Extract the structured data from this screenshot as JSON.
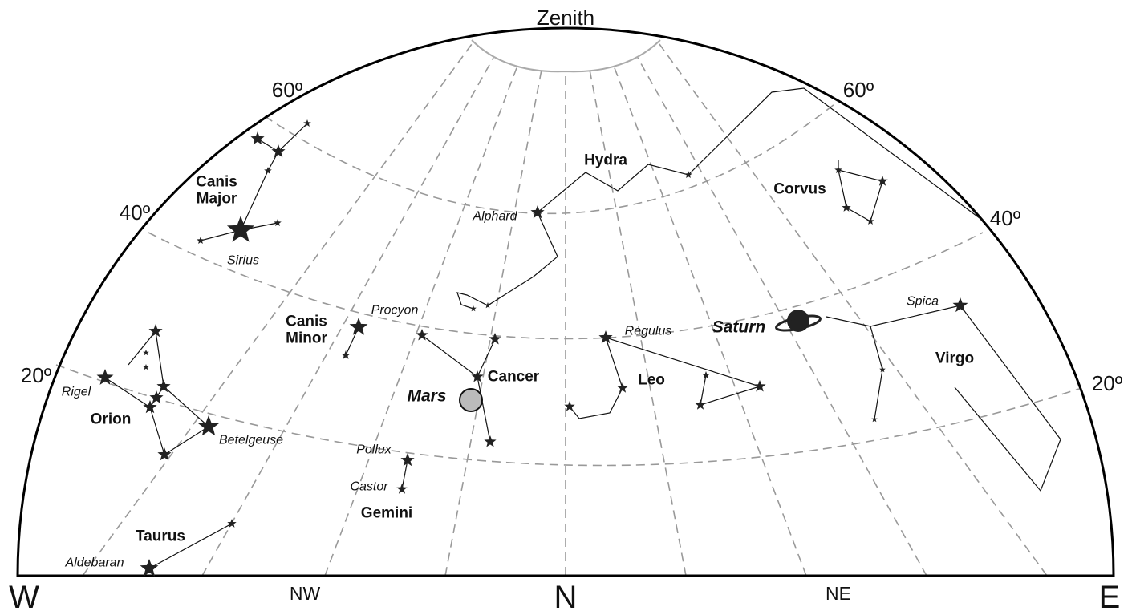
{
  "title": "Zenith",
  "altitudes": {
    "left": [
      "60º",
      "40º",
      "20º"
    ],
    "right": [
      "60º",
      "40º",
      "20º"
    ]
  },
  "directions": [
    "W",
    "NW",
    "N",
    "NE",
    "E"
  ],
  "constellations": [
    [
      "Canis",
      "Major"
    ],
    [
      "Hydra"
    ],
    [
      "Corvus"
    ],
    [
      "Orion"
    ],
    [
      "Canis",
      "Minor"
    ],
    [
      "Cancer"
    ],
    [
      "Leo"
    ],
    [
      "Gemini"
    ],
    [
      "Taurus"
    ],
    [
      "Virgo"
    ]
  ],
  "stars": [
    "Sirius",
    "Rigel",
    "Betelgeuse",
    "Procyon",
    "Alphard",
    "Regulus",
    "Pollux",
    "Castor",
    "Aldebaran",
    "Spica"
  ],
  "planets": [
    "Mars",
    "Saturn"
  ]
}
